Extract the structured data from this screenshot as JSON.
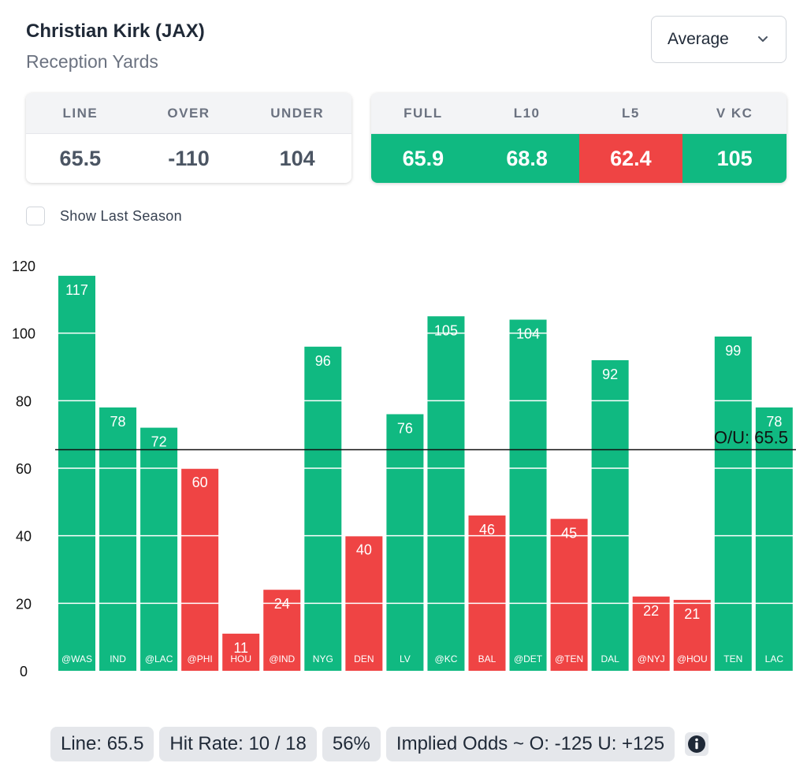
{
  "header": {
    "player_name": "Christian Kirk (JAX)",
    "stat_name": "Reception Yards",
    "dropdown": {
      "selected": "Average",
      "icon": "chevron-down-icon"
    }
  },
  "odds_card": {
    "headers": {
      "line": "LINE",
      "over": "OVER",
      "under": "UNDER"
    },
    "values": {
      "line": "65.5",
      "over": "-110",
      "under": "104"
    }
  },
  "averages_card": {
    "headers": [
      "FULL",
      "L10",
      "L5",
      "V KC"
    ],
    "values": [
      "65.9",
      "68.8",
      "62.4",
      "105"
    ],
    "status": [
      "over",
      "over",
      "under",
      "over"
    ]
  },
  "toggle": {
    "label": "Show Last Season",
    "checked": false
  },
  "colors": {
    "over": "#10b981",
    "under": "#ef4444",
    "line_text": "#4f46e5"
  },
  "chart_data": {
    "type": "bar",
    "categories": [
      "@WAS",
      "IND",
      "@LAC",
      "@PHI",
      "HOU",
      "@IND",
      "NYG",
      "DEN",
      "LV",
      "@KC",
      "BAL",
      "@DET",
      "@TEN",
      "DAL",
      "@NYJ",
      "@HOU",
      "TEN",
      "LAC"
    ],
    "values": [
      117,
      78,
      72,
      60,
      11,
      24,
      96,
      40,
      76,
      105,
      46,
      104,
      45,
      92,
      22,
      21,
      99,
      78
    ],
    "ylim": [
      0,
      120
    ],
    "yticks": [
      "0",
      "20",
      "40",
      "60",
      "80",
      "100",
      "120"
    ],
    "ytick_values": [
      0,
      20,
      40,
      60,
      80,
      100,
      120
    ],
    "threshold": {
      "value": 65.5,
      "label": "O/U: 65.5"
    },
    "grid": true
  },
  "footer": {
    "line": "Line: 65.5",
    "hit_rate": "Hit Rate: 10 / 18",
    "hit_pct": "56%",
    "implied_odds": "Implied Odds ~ O: -125 U: +125",
    "info_icon": "info-icon"
  }
}
